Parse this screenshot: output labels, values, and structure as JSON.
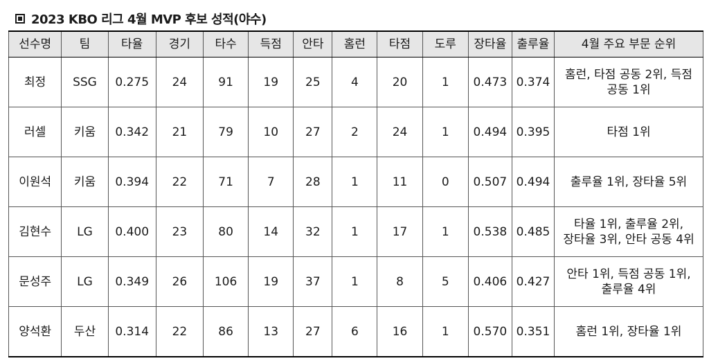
{
  "title": "2023 KBO 리그 4월 MVP 후보 성적(야수)",
  "headers": [
    "선수명",
    "팀",
    "타율",
    "경기",
    "타수",
    "득점",
    "안타",
    "홈런",
    "타점",
    "도루",
    "장타율",
    "출루율",
    "4월 주요 부문 순위"
  ],
  "rows": [
    [
      "최정",
      "SSG",
      "0.275",
      "24",
      "91",
      "19",
      "25",
      "4",
      "20",
      "1",
      "0.473",
      "0.374",
      "홈런, 타점 공동 2위, 득점 공동 1위"
    ],
    [
      "러셀",
      "키움",
      "0.342",
      "21",
      "79",
      "10",
      "27",
      "2",
      "24",
      "1",
      "0.494",
      "0.395",
      "타점 1위"
    ],
    [
      "이원석",
      "키움",
      "0.394",
      "22",
      "71",
      "7",
      "28",
      "1",
      "11",
      "0",
      "0.507",
      "0.494",
      "출루율 1위, 장타율 5위"
    ],
    [
      "김현수",
      "LG",
      "0.400",
      "23",
      "80",
      "14",
      "32",
      "1",
      "17",
      "1",
      "0.538",
      "0.485",
      "타율 1위, 출루율 2위, 장타율 3위, 안타 공동 4위"
    ],
    [
      "문성주",
      "LG",
      "0.349",
      "26",
      "106",
      "19",
      "37",
      "1",
      "8",
      "5",
      "0.406",
      "0.427",
      "안타 1위, 득점 공동 1위, 출루율 4위"
    ],
    [
      "양석환",
      "두산",
      "0.314",
      "22",
      "86",
      "13",
      "27",
      "6",
      "16",
      "1",
      "0.570",
      "0.351",
      "홈런 1위, 장타율 1위"
    ]
  ]
}
